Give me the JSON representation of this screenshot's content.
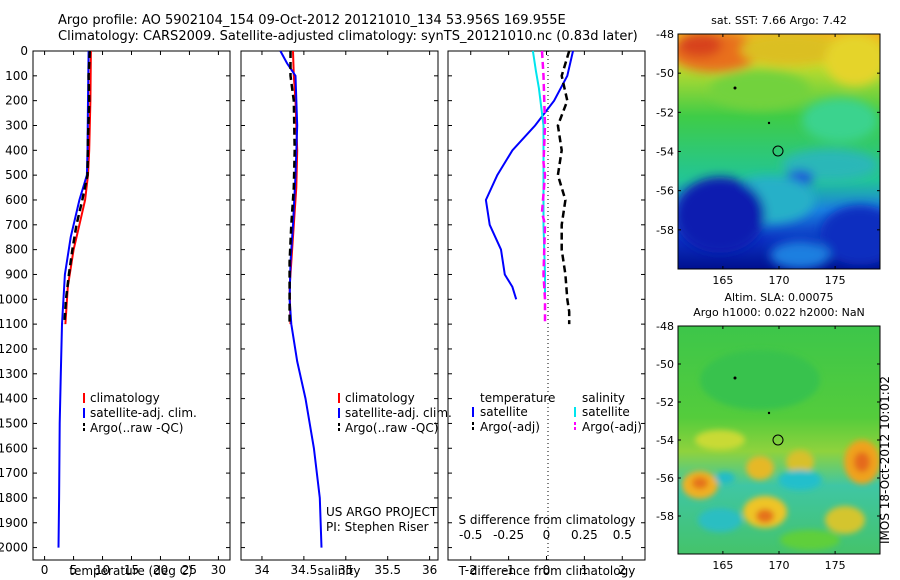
{
  "header": {
    "line1": "Argo profile: AO 5902104_154 09-Oct-2012 20121010_134 53.956S 169.955E",
    "line2": "Climatology: CARS2009. Satellite-adjusted climatology: synTS_20121010.nc (0.83d later)"
  },
  "colors": {
    "climatology": "#ff0000",
    "satellite": "#0000ff",
    "argo": "#000000",
    "satellite_salinity": "#00e5ee",
    "argo_salinity": "#ff00ff"
  },
  "timestamp": "IMOS 18-Oct-2012 10:01:02",
  "chart_data": [
    {
      "type": "line",
      "id": "temperature",
      "xlabel": "temperature (deg C)",
      "ylabel": "",
      "xlim": [
        -2,
        32
      ],
      "ylim": [
        2050,
        0
      ],
      "xticks": [
        0,
        5,
        10,
        15,
        20,
        25,
        30
      ],
      "yticks": [
        0,
        100,
        200,
        300,
        400,
        500,
        600,
        700,
        800,
        900,
        1000,
        1100,
        1200,
        1300,
        1400,
        1500,
        1600,
        1700,
        1800,
        1900,
        2000
      ],
      "legend": [
        "climatology",
        "satellite-adj. clim.",
        "Argo(..raw -QC)"
      ],
      "legend_position": "middle",
      "series": [
        {
          "name": "climatology",
          "color": "#ff0000",
          "dash": "",
          "x": [
            8.0,
            7.9,
            7.7,
            7.5,
            7.0,
            6.0,
            5.0,
            4.0,
            3.6
          ],
          "y": [
            0,
            200,
            400,
            500,
            600,
            700,
            800,
            950,
            1100
          ]
        },
        {
          "name": "satellite-adj. clim.",
          "color": "#0000ff",
          "dash": "",
          "x": [
            7.6,
            7.5,
            7.4,
            7.3,
            6.0,
            4.5,
            3.5,
            3.0,
            2.8,
            2.6,
            2.5,
            2.4
          ],
          "y": [
            0,
            200,
            400,
            500,
            600,
            750,
            900,
            1100,
            1300,
            1500,
            1800,
            2000
          ]
        },
        {
          "name": "Argo(..raw -QC)",
          "color": "#000000",
          "dash": "7,4",
          "x": [
            7.8,
            7.6,
            7.7,
            7.5,
            7.4,
            6.5,
            5.5,
            4.8,
            4.2,
            3.7,
            3.4
          ],
          "y": [
            0,
            100,
            200,
            350,
            500,
            600,
            700,
            800,
            900,
            1000,
            1100
          ]
        }
      ]
    },
    {
      "type": "line",
      "id": "salinity",
      "xlabel": "salinity",
      "ylabel": "",
      "xlim": [
        33.75,
        36.1
      ],
      "ylim": [
        2050,
        0
      ],
      "xticks": [
        34,
        34.5,
        35,
        35.5,
        36
      ],
      "xticklabels": [
        "34",
        "34.5",
        "35",
        "35.5",
        "36"
      ],
      "legend": [
        "climatology",
        "satellite-adj. clim.",
        "Argo(..raw -QC)"
      ],
      "legend_position": "middle",
      "annotation": [
        "US ARGO PROJECT",
        "PI: Stephen Riser"
      ],
      "series": [
        {
          "name": "climatology",
          "color": "#ff0000",
          "dash": "",
          "x": [
            34.37,
            34.38,
            34.4,
            34.42,
            34.41,
            34.38,
            34.35,
            34.33,
            34.34
          ],
          "y": [
            0,
            100,
            200,
            400,
            550,
            700,
            850,
            950,
            1100
          ]
        },
        {
          "name": "satellite-adj. clim.",
          "color": "#0000ff",
          "dash": "",
          "x": [
            34.22,
            34.3,
            34.4,
            34.42,
            34.4,
            34.37,
            34.34,
            34.33,
            34.35,
            34.42,
            34.52,
            34.62,
            34.69,
            34.71
          ],
          "y": [
            0,
            50,
            100,
            300,
            500,
            700,
            850,
            1000,
            1100,
            1250,
            1400,
            1600,
            1800,
            2000
          ]
        },
        {
          "name": "Argo(..raw -QC)",
          "color": "#000000",
          "dash": "7,4",
          "x": [
            34.34,
            34.34,
            34.38,
            34.39,
            34.38,
            34.35,
            34.33,
            34.33
          ],
          "y": [
            0,
            100,
            200,
            400,
            550,
            700,
            850,
            1100
          ]
        }
      ]
    },
    {
      "type": "line",
      "id": "difference",
      "xlabel": "T difference from climatology",
      "x2label": "S difference from climatology",
      "xlim": [
        -2.6,
        2.6
      ],
      "x2lim": [
        -0.65,
        0.65
      ],
      "ylim": [
        2050,
        0
      ],
      "xticks": [
        -2,
        -1,
        0,
        1,
        2
      ],
      "x2ticks": [
        -0.5,
        -0.25,
        0,
        0.25,
        0.5
      ],
      "x2ticklabels": [
        "-0.5",
        "-0.25",
        "0",
        "0.25",
        "0.5"
      ],
      "legend_temperature_title": "temperature",
      "legend_salinity_title": "salinity",
      "legend_temperature": [
        "satellite",
        "Argo(-adj)"
      ],
      "legend_salinity": [
        "satellite",
        "Argo(-adj)"
      ],
      "series": [
        {
          "name": "T satellite",
          "axis": "T",
          "color": "#0000ff",
          "dash": "",
          "x": [
            0.7,
            0.55,
            0.2,
            -0.3,
            -0.9,
            -1.3,
            -1.6,
            -1.5,
            -1.2,
            -1.1,
            -0.9,
            -0.8
          ],
          "y": [
            0,
            100,
            200,
            300,
            400,
            500,
            600,
            700,
            800,
            900,
            950,
            1000
          ]
        },
        {
          "name": "T Argo(-adj)",
          "axis": "T",
          "color": "#000000",
          "dash": "7,4",
          "x": [
            0.6,
            0.4,
            0.55,
            0.3,
            0.4,
            0.3,
            0.5,
            0.4,
            0.4,
            0.5,
            0.55,
            0.6,
            0.6
          ],
          "y": [
            0,
            100,
            200,
            300,
            400,
            500,
            600,
            700,
            800,
            900,
            1000,
            1050,
            1100
          ]
        },
        {
          "name": "S satellite",
          "axis": "S",
          "color": "#00e5ee",
          "dash": "",
          "x": [
            -0.09,
            -0.07,
            -0.05,
            -0.02,
            -0.02,
            -0.02,
            -0.01,
            -0.01
          ],
          "y": [
            0,
            80,
            150,
            300,
            500,
            700,
            900,
            1000
          ]
        },
        {
          "name": "S Argo(-adj)",
          "axis": "S",
          "color": "#ff00ff",
          "dash": "7,4",
          "x": [
            -0.03,
            -0.02,
            -0.01,
            -0.02,
            -0.01,
            -0.03,
            -0.01,
            -0.02,
            -0.01,
            -0.01
          ],
          "y": [
            0,
            100,
            300,
            450,
            500,
            650,
            700,
            900,
            1000,
            1100
          ]
        }
      ]
    },
    {
      "type": "heatmap",
      "id": "sst-map",
      "title": "sat. SST: 7.66 Argo: 7.42",
      "xlim": [
        161,
        179
      ],
      "ylim": [
        -60,
        -48
      ],
      "xticks": [
        165,
        170,
        175
      ],
      "yticks": [
        -48,
        -50,
        -52,
        -54,
        -56,
        -58
      ],
      "profile_marker": [
        170,
        -54
      ]
    },
    {
      "type": "heatmap",
      "id": "sla-map",
      "title": "Altim. SLA: 0.00075",
      "subtitle": "Argo h1000: 0.022 h2000: NaN",
      "xlim": [
        161,
        179
      ],
      "ylim": [
        -60,
        -48
      ],
      "xticks": [
        165,
        170,
        175
      ],
      "yticks": [
        -48,
        -50,
        -52,
        -54,
        -56,
        -58
      ],
      "profile_marker": [
        170,
        -54
      ]
    }
  ]
}
